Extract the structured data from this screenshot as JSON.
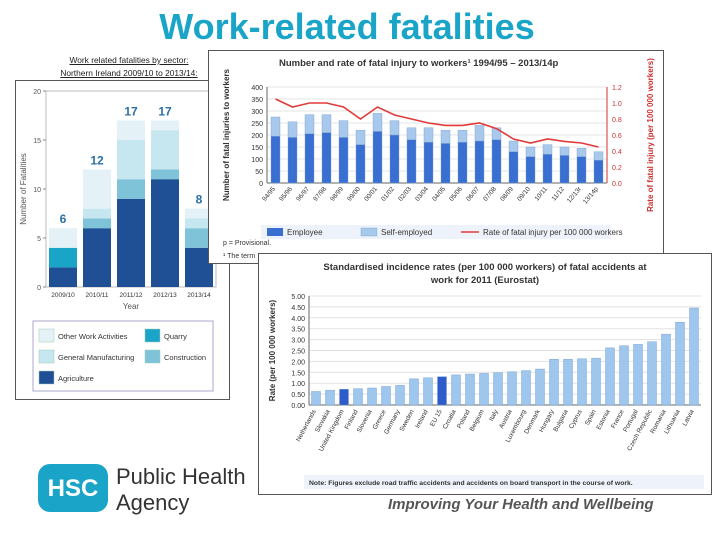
{
  "slide": {
    "title": "Work-related fatalities",
    "caption_line1": "Work related fatalities by sector:",
    "caption_line2": "Northern Ireland 2009/10 to 2013/14:",
    "logo_badge": "HSC",
    "logo_line1": "Public Health",
    "logo_line2": "Agency",
    "tagline": "Improving Your Health and Wellbeing"
  },
  "colors": {
    "title": "#1aa5c8",
    "quarry": "#1aa5c8",
    "agriculture": "#1f4f95",
    "construction": "#7fc3d8",
    "general_manufacturing": "#c6e6f0",
    "other_work": "#e4f2f7",
    "employee": "#3a6fd2",
    "self_employed": "#a8c8ec",
    "rate_line": "#e23a3a",
    "eu_bar": "#9fc6ec",
    "eu_highlight": "#2d5bc9"
  },
  "chart_data": [
    {
      "type": "bar",
      "stacked": true,
      "xlabel": "Year",
      "ylabel": "Number of Fatalities",
      "ylim": [
        0,
        20
      ],
      "yticks": [
        0,
        5,
        10,
        15,
        20
      ],
      "categories": [
        "2009/10",
        "2010/11",
        "2011/12",
        "2012/13",
        "2013/14"
      ],
      "totals": [
        6,
        12,
        17,
        17,
        8
      ],
      "series": [
        {
          "name": "Agriculture",
          "color_key": "agriculture",
          "values": [
            2,
            6,
            9,
            11,
            4
          ]
        },
        {
          "name": "Quarry",
          "color_key": "quarry",
          "values": [
            2,
            0,
            0,
            0,
            0
          ]
        },
        {
          "name": "Construction",
          "color_key": "construction",
          "values": [
            0,
            1,
            2,
            1,
            2
          ]
        },
        {
          "name": "General Manufacturing",
          "color_key": "general_manufacturing",
          "values": [
            0,
            1,
            4,
            4,
            1
          ]
        },
        {
          "name": "Other Work Activities",
          "color_key": "other_work",
          "values": [
            2,
            4,
            2,
            1,
            1
          ]
        }
      ],
      "legend_order": [
        "Other Work Activities",
        "Quarry",
        "General Manufacturing",
        "Construction",
        "Agriculture"
      ],
      "legend": "bottom"
    },
    {
      "type": "bar",
      "stacked": true,
      "title": "Number and rate of fatal injury to workers¹ 1994/95 – 2013/14p",
      "ylabel": "Number of fatal injuries to workers",
      "y2label": "Rate of fatal injury (per 100 000 workers)",
      "ylim": [
        0,
        400
      ],
      "yticks": [
        0,
        50,
        100,
        150,
        200,
        250,
        300,
        350,
        400
      ],
      "y2lim": [
        0,
        1.2
      ],
      "y2ticks": [
        "0.0",
        "0.2",
        "0.4",
        "0.6",
        "0.8",
        "1.0",
        "1.2"
      ],
      "categories": [
        "94/95",
        "95/96",
        "96/97",
        "97/98",
        "98/99",
        "99/00",
        "00/01",
        "01/02",
        "02/03",
        "03/04",
        "04/05",
        "05/06",
        "06/07",
        "07/08",
        "08/09",
        "09/10",
        "10/11",
        "11/12",
        "12/13r",
        "13/14p"
      ],
      "series": [
        {
          "name": "Employee",
          "color_key": "employee",
          "values": [
            195,
            190,
            205,
            210,
            190,
            160,
            215,
            200,
            180,
            170,
            165,
            170,
            175,
            180,
            130,
            110,
            120,
            115,
            110,
            95
          ]
        },
        {
          "name": "Self-employed",
          "color_key": "self_employed",
          "values": [
            80,
            65,
            80,
            75,
            70,
            60,
            75,
            60,
            50,
            60,
            55,
            50,
            65,
            50,
            45,
            40,
            40,
            35,
            35,
            35
          ]
        }
      ],
      "line": {
        "name": "Rate of fatal injury per 100 000 workers",
        "color_key": "rate_line",
        "values": [
          1.05,
          0.95,
          1.0,
          1.0,
          0.95,
          0.8,
          0.95,
          0.85,
          0.8,
          0.75,
          0.72,
          0.72,
          0.75,
          0.68,
          0.55,
          0.5,
          0.55,
          0.52,
          0.5,
          0.45
        ]
      },
      "footnote_1": "p = Provisional.",
      "footnote_2": "¹ The term",
      "legend": "bottom"
    },
    {
      "type": "bar",
      "title_line1": "Standardised incidence rates (per 100 000 workers) of fatal accidents at",
      "title_line2": "work for 2011 (Eurostat)",
      "ylabel": "Rate (per 100 000 workers)",
      "ylim": [
        0,
        5
      ],
      "yticks": [
        "0.00",
        "0.50",
        "1.00",
        "1.50",
        "2.00",
        "2.50",
        "3.00",
        "3.50",
        "4.00",
        "4.50",
        "5.00"
      ],
      "categories": [
        "Netherlands",
        "Slovakia",
        "United Kingdom",
        "Finland",
        "Slovenia",
        "Greece",
        "Germany",
        "Sweden",
        "Ireland",
        "EU 15",
        "Croatia",
        "Poland",
        "Belgium",
        "Italy",
        "Austria",
        "Luxembourg",
        "Denmark",
        "Hungary",
        "Bulgaria",
        "Cyprus",
        "Spain",
        "Estonia",
        "France",
        "Portugal",
        "Czech Republic",
        "Romania",
        "Lithuania",
        "Latvia"
      ],
      "values": [
        0.62,
        0.68,
        0.72,
        0.75,
        0.78,
        0.85,
        0.9,
        1.2,
        1.25,
        1.3,
        1.38,
        1.42,
        1.45,
        1.48,
        1.52,
        1.58,
        1.65,
        2.1,
        2.1,
        2.12,
        2.15,
        2.62,
        2.72,
        2.78,
        2.9,
        3.25,
        3.8,
        4.45
      ],
      "highlight": [
        "United Kingdom",
        "EU 15"
      ],
      "note": "Note: Figures exclude road traffic accidents and accidents on board transport in the course of work."
    }
  ]
}
